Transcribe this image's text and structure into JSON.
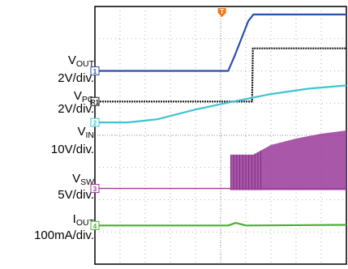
{
  "chart_data": {
    "type": "line",
    "x": {
      "min": 0,
      "max": 10,
      "divisions": 10
    },
    "y": {
      "min": 0,
      "max": 8,
      "divisions": 8
    },
    "grid": true,
    "trigger_marker": "T",
    "channels": [
      {
        "id": "1",
        "name_main": "V",
        "name_sub": "OUT",
        "scale": "2V/div.",
        "color": "#2a50a8",
        "points": [
          [
            0,
            6.0
          ],
          [
            5.3,
            6.0
          ],
          [
            5.55,
            6.45
          ],
          [
            6.1,
            7.55
          ],
          [
            6.3,
            7.75
          ],
          [
            10,
            7.75
          ]
        ]
      },
      {
        "id": "R1",
        "name_main": "V",
        "name_sub": "PG",
        "scale": "2V/div.",
        "color": "#1a1a1a",
        "points": [
          [
            0,
            5.05
          ],
          [
            6.25,
            5.05
          ],
          [
            6.28,
            6.7
          ],
          [
            10,
            6.7
          ]
        ]
      },
      {
        "id": "2",
        "name_main": "V",
        "name_sub": "IN",
        "scale": "10V/div.",
        "color": "#3fc3d3",
        "points": [
          [
            0,
            4.4
          ],
          [
            1.3,
            4.4
          ],
          [
            2.5,
            4.5
          ],
          [
            4,
            4.8
          ],
          [
            5.5,
            5.05
          ],
          [
            7,
            5.28
          ],
          [
            8.5,
            5.45
          ],
          [
            10,
            5.55
          ]
        ]
      },
      {
        "id": "3",
        "name_main": "V",
        "name_sub": "SW",
        "scale": "5V/div.",
        "color": "#9a3a9a",
        "points": [
          [
            0,
            2.35
          ],
          [
            5.35,
            2.35
          ],
          [
            10,
            2.35
          ]
        ],
        "burst": {
          "start": 5.4,
          "end": 10,
          "envelope_high": [
            [
              5.4,
              3.4
            ],
            [
              6.3,
              3.4
            ],
            [
              7,
              3.7
            ],
            [
              8,
              3.9
            ],
            [
              9,
              4.05
            ],
            [
              10,
              4.15
            ]
          ]
        }
      },
      {
        "id": "4",
        "name_main": "I",
        "name_sub": "OUT",
        "scale": "100mA/div.",
        "color": "#4ab030",
        "points": [
          [
            0,
            1.2
          ],
          [
            5.3,
            1.2
          ],
          [
            5.6,
            1.28
          ],
          [
            6,
            1.2
          ],
          [
            10,
            1.22
          ]
        ]
      }
    ]
  }
}
